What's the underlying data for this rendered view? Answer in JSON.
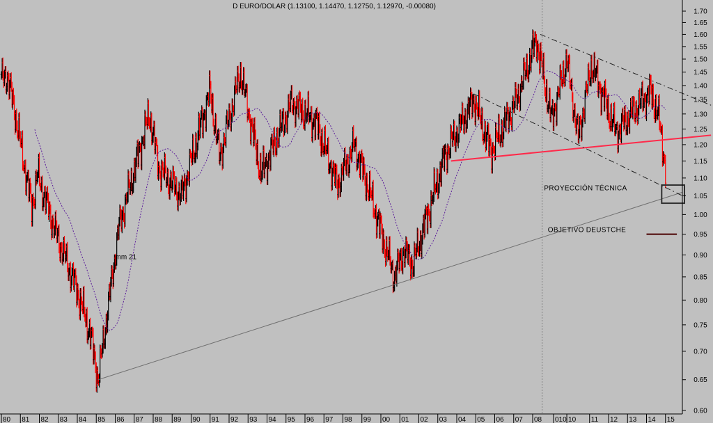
{
  "chart_data": {
    "type": "bar",
    "subtype": "ohlc",
    "title": "D EURO/DOLAR (1.13100, 1.14470, 1.12750, 1.12970, -0.00080)",
    "y_scale": "log",
    "ylim": [
      0.6,
      1.7
    ],
    "y_ticks": [
      "0.60",
      "0.65",
      "0.70",
      "0.75",
      "0.80",
      "0.85",
      "0.90",
      "0.95",
      "1.00",
      "1.05",
      "1.10",
      "1.15",
      "1.20",
      "1.25",
      "1.30",
      "1.35",
      "1.40",
      "1.45",
      "1.50",
      "1.55",
      "1.60",
      "1.65",
      "1.70"
    ],
    "x_ticks": [
      {
        "label": "80",
        "year": 1980
      },
      {
        "label": "81",
        "year": 1981
      },
      {
        "label": "82",
        "year": 1982
      },
      {
        "label": "83",
        "year": 1983
      },
      {
        "label": "84",
        "year": 1984
      },
      {
        "label": "85",
        "year": 1985
      },
      {
        "label": "86",
        "year": 1986
      },
      {
        "label": "87",
        "year": 1987
      },
      {
        "label": "88",
        "year": 1988
      },
      {
        "label": "89",
        "year": 1989
      },
      {
        "label": "90",
        "year": 1990
      },
      {
        "label": "91",
        "year": 1991
      },
      {
        "label": "92",
        "year": 1992
      },
      {
        "label": "93",
        "year": 1993
      },
      {
        "label": "94",
        "year": 1994
      },
      {
        "label": "95",
        "year": 1995
      },
      {
        "label": "96",
        "year": 1996
      },
      {
        "label": "97",
        "year": 1997
      },
      {
        "label": "98",
        "year": 1998
      },
      {
        "label": "99",
        "year": 1999
      },
      {
        "label": "00",
        "year": 2000
      },
      {
        "label": "01",
        "year": 2001
      },
      {
        "label": "02",
        "year": 2002
      },
      {
        "label": "03",
        "year": 2003
      },
      {
        "label": "04",
        "year": 2004
      },
      {
        "label": "05",
        "year": 2005
      },
      {
        "label": "06",
        "year": 2006
      },
      {
        "label": "07",
        "year": 2007
      },
      {
        "label": "08",
        "year": 2008
      },
      {
        "label": "010",
        "year": 2009.1
      },
      {
        "label": "10",
        "year": 2009.8
      },
      {
        "label": "11",
        "year": 2011
      },
      {
        "label": "12",
        "year": 2012
      },
      {
        "label": "13",
        "year": 2013
      },
      {
        "label": "14",
        "year": 2014
      },
      {
        "label": "15",
        "year": 2015
      }
    ],
    "price_keypoints": [
      [
        1980.0,
        1.42
      ],
      [
        1980.3,
        1.44
      ],
      [
        1980.7,
        1.31
      ],
      [
        1981.6,
        1.02
      ],
      [
        1981.9,
        1.11
      ],
      [
        1982.9,
        0.95
      ],
      [
        1984.0,
        0.82
      ],
      [
        1984.7,
        0.73
      ],
      [
        1985.1,
        0.65
      ],
      [
        1986.2,
        0.97
      ],
      [
        1987.8,
        1.3
      ],
      [
        1988.3,
        1.13
      ],
      [
        1989.5,
        1.05
      ],
      [
        1991.0,
        1.38
      ],
      [
        1991.5,
        1.16
      ],
      [
        1992.6,
        1.45
      ],
      [
        1993.7,
        1.11
      ],
      [
        1995.3,
        1.34
      ],
      [
        1996.6,
        1.27
      ],
      [
        1997.7,
        1.08
      ],
      [
        1998.6,
        1.2
      ],
      [
        1999.3,
        1.08
      ],
      [
        2000.7,
        0.85
      ],
      [
        2001.2,
        0.91
      ],
      [
        2001.7,
        0.88
      ],
      [
        2003.4,
        1.17
      ],
      [
        2004.9,
        1.35
      ],
      [
        2005.8,
        1.18
      ],
      [
        2007.1,
        1.34
      ],
      [
        2008.2,
        1.58
      ],
      [
        2009.0,
        1.28
      ],
      [
        2009.8,
        1.5
      ],
      [
        2010.4,
        1.22
      ],
      [
        2011.1,
        1.48
      ],
      [
        2012.4,
        1.24
      ],
      [
        2014.2,
        1.38
      ],
      [
        2014.6,
        1.3
      ],
      [
        2014.8,
        1.22
      ],
      [
        2015.0,
        1.13
      ]
    ],
    "moving_average": {
      "label": "mm 21",
      "color": "#5a1a9a"
    },
    "trendlines": [
      {
        "name": "long-term-support",
        "from": [
          1985.1,
          0.65
        ],
        "to": [
          2015.9,
          1.06
        ],
        "color": "#707070",
        "style": "solid"
      },
      {
        "name": "neckline",
        "from": [
          2003.7,
          1.15
        ],
        "to": [
          2017.4,
          1.23
        ],
        "color": "#ff2a4a",
        "style": "solid"
      },
      {
        "name": "channel-upper",
        "from": [
          2008.4,
          1.6
        ],
        "to": [
          2017.4,
          1.33
        ],
        "color": "#202020",
        "style": "dashdot"
      },
      {
        "name": "channel-lower",
        "from": [
          2004.9,
          1.37
        ],
        "to": [
          2015.9,
          1.05
        ],
        "color": "#202020",
        "style": "dashdot"
      },
      {
        "name": "objetivo-line",
        "from": [
          2014.0,
          0.95
        ],
        "to": [
          2015.6,
          0.95
        ],
        "color": "#4a0000",
        "style": "solid"
      }
    ],
    "vertical_marker_year": 2008.5,
    "projection_box": {
      "x": [
        2014.8,
        2016.0
      ],
      "y": [
        1.03,
        1.08
      ]
    },
    "annotations": [
      {
        "text": "PROYECCIÓN TÉCNICA",
        "year": 2008.6,
        "price": 1.065,
        "color": "#202020"
      },
      {
        "text": "OBJETIVO DEUSTCHE",
        "year": 2008.8,
        "price": 0.955,
        "color": "#4a0000"
      }
    ],
    "colors": {
      "up": "#000000",
      "down": "#ff0000",
      "background": "#c0c0c0"
    }
  }
}
